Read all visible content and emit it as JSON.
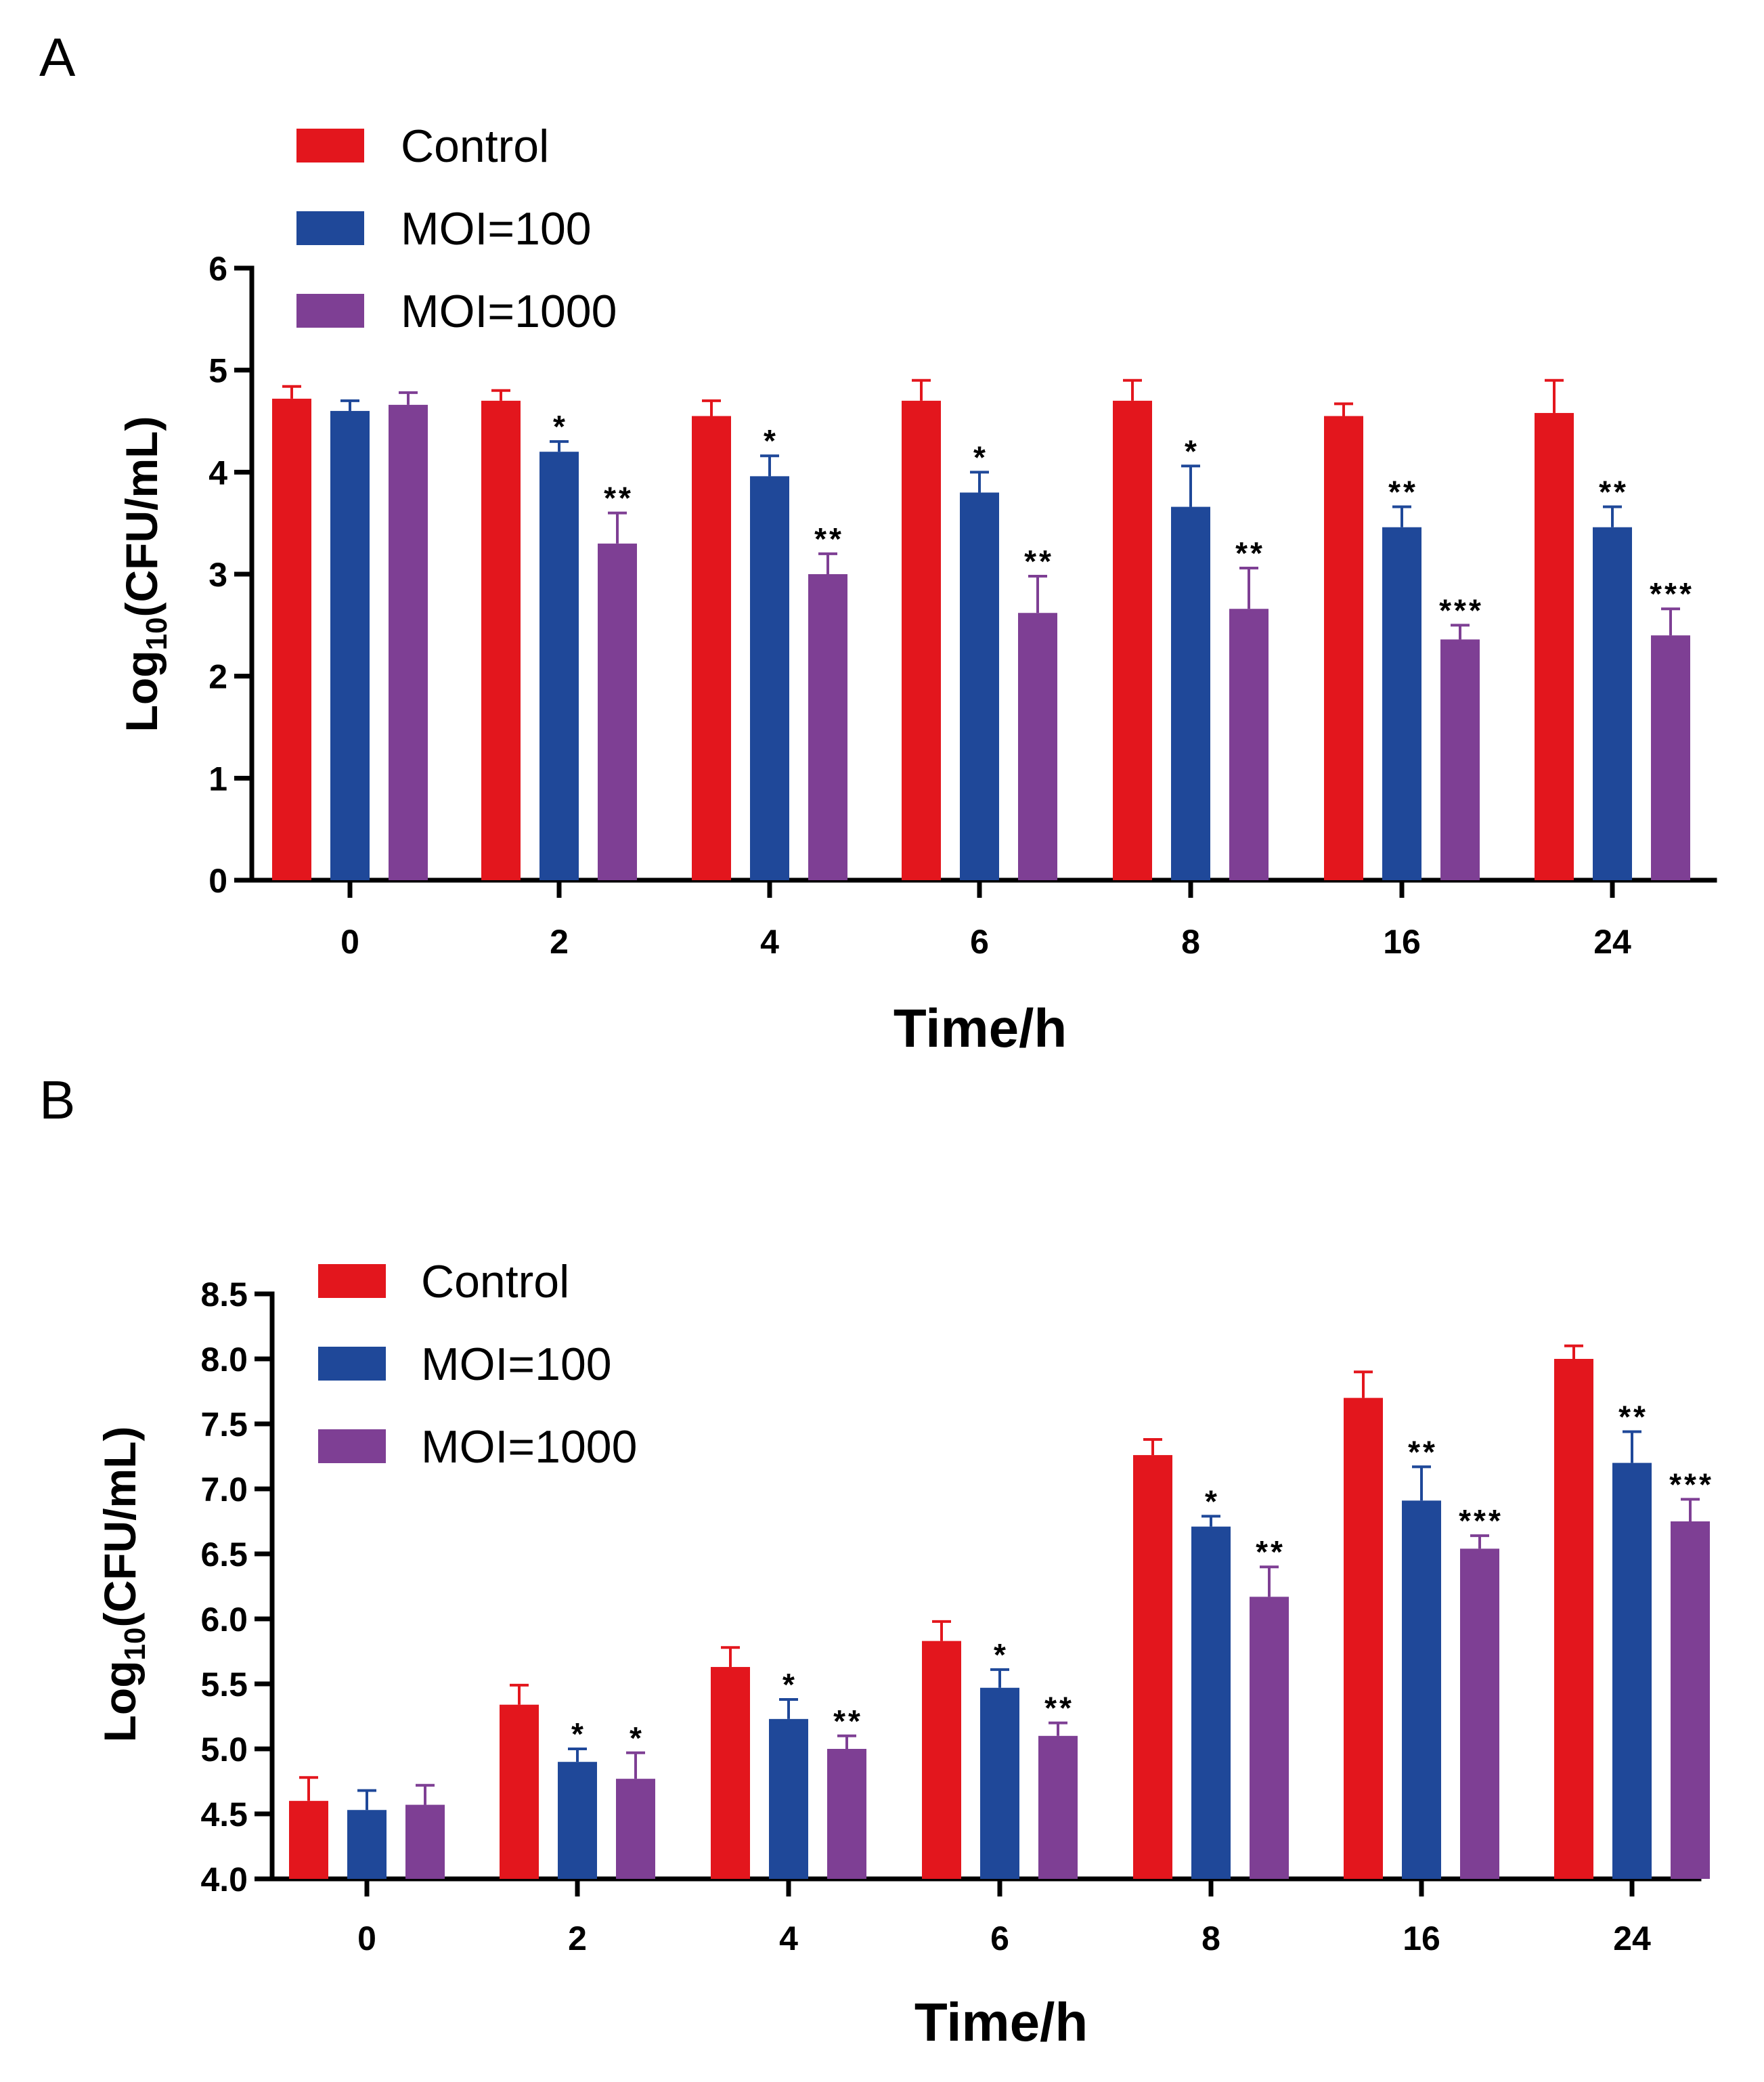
{
  "chart_data": [
    {
      "id": "A",
      "panel_label": "A",
      "type": "bar",
      "xlabel": "Time/h",
      "ylabel_main": "Log",
      "ylabel_sub": "10",
      "ylabel_rest": "(CFU/mL)",
      "ylim": [
        0,
        6
      ],
      "yticks": [
        "0",
        "1",
        "2",
        "3",
        "4",
        "5",
        "6"
      ],
      "categories": [
        "0",
        "2",
        "4",
        "6",
        "8",
        "16",
        "24"
      ],
      "series": [
        {
          "name": "Control",
          "color": "#e3161d",
          "values": [
            4.72,
            4.7,
            4.55,
            4.7,
            4.7,
            4.55,
            4.58
          ],
          "errors": [
            0.12,
            0.1,
            0.15,
            0.2,
            0.2,
            0.12,
            0.32
          ],
          "sig": [
            "",
            "",
            "",
            "",
            "",
            "",
            ""
          ]
        },
        {
          "name": "MOI=100",
          "color": "#1f4899",
          "values": [
            4.6,
            4.2,
            3.96,
            3.8,
            3.66,
            3.46,
            3.46
          ],
          "errors": [
            0.1,
            0.1,
            0.2,
            0.2,
            0.4,
            0.2,
            0.2
          ],
          "sig": [
            "",
            "*",
            "*",
            "*",
            "*",
            "**",
            "**"
          ]
        },
        {
          "name": "MOI=1000",
          "color": "#7e3f94",
          "values": [
            4.66,
            3.3,
            3.0,
            2.62,
            2.66,
            2.36,
            2.4
          ],
          "errors": [
            0.12,
            0.3,
            0.2,
            0.36,
            0.4,
            0.14,
            0.26
          ],
          "sig": [
            "",
            "**",
            "**",
            "**",
            "**",
            "***",
            "***"
          ]
        }
      ]
    },
    {
      "id": "B",
      "panel_label": "B",
      "type": "bar",
      "xlabel": "Time/h",
      "ylabel_main": "Log",
      "ylabel_sub": "10",
      "ylabel_rest": "(CFU/mL)",
      "ylim": [
        4.0,
        8.5
      ],
      "yticks": [
        "4.0",
        "4.5",
        "5.0",
        "5.5",
        "6.0",
        "6.5",
        "7.0",
        "7.5",
        "8.0",
        "8.5"
      ],
      "categories": [
        "0",
        "2",
        "4",
        "6",
        "8",
        "16",
        "24"
      ],
      "series": [
        {
          "name": "Control",
          "color": "#e3161d",
          "values": [
            4.6,
            5.34,
            5.63,
            5.83,
            7.26,
            7.7,
            8.0
          ],
          "errors": [
            0.18,
            0.15,
            0.15,
            0.15,
            0.12,
            0.2,
            0.1
          ],
          "sig": [
            "",
            "",
            "",
            "",
            "",
            "",
            ""
          ]
        },
        {
          "name": "MOI=100",
          "color": "#1f4899",
          "values": [
            4.53,
            4.9,
            5.23,
            5.47,
            6.71,
            6.91,
            7.2
          ],
          "errors": [
            0.15,
            0.1,
            0.15,
            0.14,
            0.08,
            0.26,
            0.24
          ],
          "sig": [
            "",
            "*",
            "*",
            "*",
            "*",
            "**",
            "**"
          ]
        },
        {
          "name": "MOI=1000",
          "color": "#7e3f94",
          "values": [
            4.57,
            4.77,
            5.0,
            5.1,
            6.17,
            6.54,
            6.75
          ],
          "errors": [
            0.15,
            0.2,
            0.1,
            0.1,
            0.23,
            0.1,
            0.17
          ],
          "sig": [
            "",
            "*",
            "**",
            "**",
            "**",
            "***",
            "***"
          ]
        }
      ]
    }
  ]
}
